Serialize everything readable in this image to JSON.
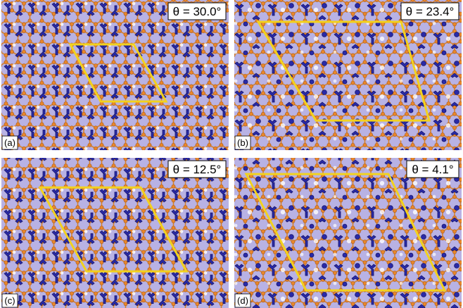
{
  "panels": [
    {
      "angle": "θ = 30.0°",
      "label": "(a)"
    },
    {
      "angle": "θ = 23.4°",
      "label": "(b)"
    },
    {
      "angle": "θ = 12.5°",
      "label": "(c)"
    },
    {
      "angle": "θ = 4.1°",
      "label": "(d)"
    }
  ]
}
